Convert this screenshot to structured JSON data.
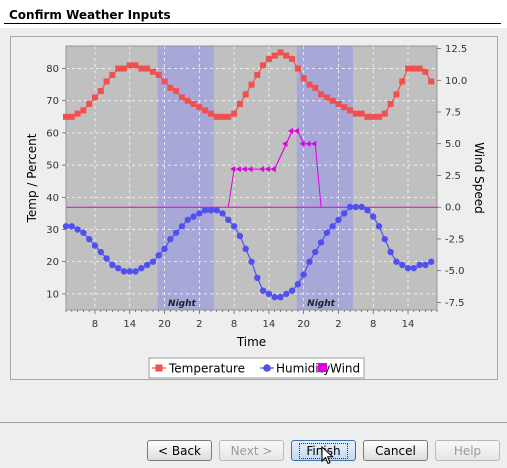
{
  "window": {
    "title": "Confirm Weather Inputs"
  },
  "buttons": {
    "back": "< Back",
    "next": "Next >",
    "finish": "Finish",
    "cancel": "Cancel",
    "help": "Help"
  },
  "colors": {
    "temperature": "#f05050",
    "humidity": "#5050f0",
    "wind": "#e000e0",
    "night_band": "#a8a8d8",
    "plot_bg": "#c0c0c0"
  },
  "chart_data": {
    "type": "line",
    "title": "",
    "xlabel": "Time",
    "ylabel_left": "Temp / Percent",
    "ylabel_right": "Wind Speed",
    "x_tick_labels": [
      "8",
      "14",
      "20",
      "2",
      "8",
      "14",
      "20",
      "2",
      "8",
      "14"
    ],
    "x_tick_hours": [
      8,
      14,
      20,
      26,
      32,
      38,
      44,
      50,
      56,
      62
    ],
    "x_range_hours": [
      3,
      67
    ],
    "y_left_ticks": [
      "10",
      "20",
      "30",
      "40",
      "50",
      "60",
      "70",
      "80"
    ],
    "y_left_range": [
      5,
      87
    ],
    "y_right_ticks": [
      "-7.5",
      "-5.0",
      "-2.5",
      "0.0",
      "2.5",
      "5.0",
      "7.5",
      "10.0",
      "12.5"
    ],
    "y_right_range": [
      -8.1,
      12.7
    ],
    "grid": true,
    "legend_position": "bottom",
    "legend": [
      "Temperature",
      "Humidity",
      "Wind"
    ],
    "annotations": [
      {
        "text": "Night",
        "x_hour": 23
      },
      {
        "text": "Night",
        "x_hour": 47
      }
    ],
    "night_bands_hours": [
      [
        18.8,
        28.5
      ],
      [
        42.8,
        52.5
      ]
    ],
    "series": [
      {
        "name": "Temperature",
        "marker": "square",
        "x": [
          3,
          4,
          5,
          6,
          7,
          8,
          9,
          10,
          11,
          12,
          13,
          14,
          15,
          16,
          17,
          18,
          19,
          20,
          21,
          22,
          23,
          24,
          25,
          26,
          27,
          28,
          29,
          30,
          31,
          32,
          33,
          34,
          35,
          36,
          37,
          38,
          39,
          40,
          41,
          42,
          43,
          44,
          45,
          46,
          47,
          48,
          49,
          50,
          51,
          52,
          53,
          54,
          55,
          56,
          57,
          58,
          59,
          60,
          61,
          62,
          63,
          64,
          65,
          66
        ],
        "y": [
          65,
          65,
          66,
          67,
          69,
          71,
          73,
          76,
          78,
          80,
          80,
          81,
          81,
          80,
          80,
          79,
          78,
          76,
          74,
          73,
          71,
          70,
          69,
          68,
          67,
          66,
          65,
          65,
          65,
          66,
          69,
          72,
          75,
          78,
          81,
          83,
          84,
          85,
          84,
          83,
          80,
          77,
          75,
          74,
          72,
          71,
          70,
          69,
          68,
          67,
          66,
          66,
          65,
          65,
          65,
          66,
          69,
          72,
          76,
          80,
          80,
          80,
          79,
          76
        ]
      },
      {
        "name": "Humidity",
        "marker": "circle",
        "x": [
          3,
          4,
          5,
          6,
          7,
          8,
          9,
          10,
          11,
          12,
          13,
          14,
          15,
          16,
          17,
          18,
          19,
          20,
          21,
          22,
          23,
          24,
          25,
          26,
          27,
          28,
          29,
          30,
          31,
          32,
          33,
          34,
          35,
          36,
          37,
          38,
          39,
          40,
          41,
          42,
          43,
          44,
          45,
          46,
          47,
          48,
          49,
          50,
          51,
          52,
          53,
          54,
          55,
          56,
          57,
          58,
          59,
          60,
          61,
          62,
          63,
          64,
          65,
          66
        ],
        "y": [
          31,
          31,
          30,
          29,
          27,
          25,
          23,
          21,
          19,
          18,
          17,
          17,
          17,
          18,
          19,
          20,
          22,
          24,
          27,
          29,
          31,
          33,
          34,
          35,
          36,
          36,
          36,
          35,
          33,
          31,
          28,
          24,
          20,
          15,
          11,
          10,
          9,
          9,
          10,
          11,
          13,
          16,
          20,
          23,
          26,
          29,
          31,
          33,
          35,
          37,
          37,
          37,
          36,
          34,
          31,
          27,
          23,
          20,
          19,
          18,
          18,
          19,
          19,
          20
        ]
      },
      {
        "name": "Wind",
        "baseline": 0.0,
        "gusts": [
          {
            "x": [
              31,
              32,
              33,
              34,
              35,
              37,
              38,
              39,
              41,
              42,
              43
            ],
            "y": [
              0,
              3,
              3,
              3,
              3,
              3,
              3,
              3,
              5,
              6,
              6
            ]
          },
          {
            "x": [
              39,
              41,
              42,
              43,
              44,
              45,
              46,
              47
            ],
            "y": [
              3,
              5,
              6,
              6,
              5,
              5,
              5,
              0
            ]
          }
        ]
      }
    ]
  }
}
